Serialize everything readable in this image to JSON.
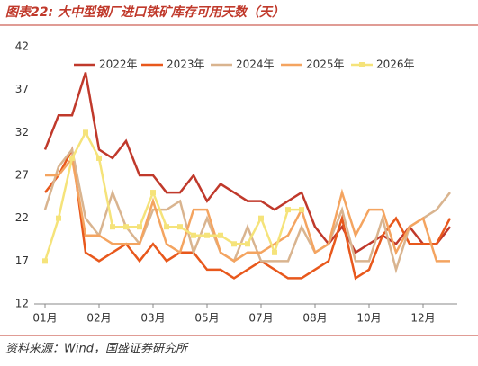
{
  "chart_data": {
    "type": "line",
    "title": "图表22: 大中型钢厂进口铁矿库存可用天数（天）",
    "source": "资料来源：Wind，国盛证券研究所",
    "categories": [
      "01月",
      null,
      null,
      null,
      "02月",
      null,
      null,
      null,
      "03月",
      null,
      null,
      null,
      "05月",
      null,
      null,
      null,
      "07月",
      null,
      null,
      null,
      "08月",
      null,
      null,
      null,
      "10月",
      null,
      null,
      null,
      "12月",
      null,
      null
    ],
    "ylim": [
      12,
      42
    ],
    "yticks": [
      12,
      17,
      22,
      27,
      32,
      37,
      42
    ],
    "grid": false,
    "legend": "top",
    "series": [
      {
        "name": "2022年",
        "color": "#c0392b",
        "values": [
          30,
          34,
          34,
          39,
          30,
          29,
          31,
          27,
          27,
          25,
          25,
          27,
          24,
          26,
          25,
          24,
          24,
          23,
          24,
          25,
          21,
          19,
          21,
          18,
          19,
          20,
          19,
          21,
          19,
          19,
          21
        ]
      },
      {
        "name": "2023年",
        "color": "#e8581c",
        "values": [
          25,
          27,
          30,
          18,
          17,
          18,
          19,
          17,
          19,
          17,
          18,
          18,
          16,
          16,
          15,
          16,
          17,
          16,
          15,
          15,
          16,
          17,
          22,
          15,
          16,
          20,
          22,
          19,
          19,
          19,
          22
        ]
      },
      {
        "name": "2024年",
        "color": "#d9b48f",
        "values": [
          23,
          28,
          30,
          22,
          20,
          25,
          21,
          19,
          23,
          23,
          24,
          18,
          22,
          18,
          17,
          21,
          17,
          17,
          17,
          21,
          18,
          19,
          23,
          17,
          17,
          22,
          16,
          21,
          22,
          23,
          25
        ]
      },
      {
        "name": "2025年",
        "color": "#f4a460",
        "values": [
          27,
          27,
          29,
          20,
          20,
          19,
          19,
          19,
          24,
          19,
          18,
          23,
          23,
          18,
          17,
          18,
          18,
          19,
          20,
          23,
          18,
          19,
          25,
          20,
          23,
          23,
          18,
          21,
          22,
          17,
          17
        ]
      },
      {
        "name": "2026年",
        "color": "#f5e37a",
        "markers": true,
        "values": [
          17,
          22,
          29,
          32,
          29,
          21,
          21,
          21,
          25,
          21,
          21,
          20,
          20,
          20,
          19,
          19,
          22,
          18,
          23,
          23,
          null,
          null,
          null,
          null,
          null,
          null,
          null,
          null,
          null,
          null,
          null
        ]
      }
    ]
  }
}
